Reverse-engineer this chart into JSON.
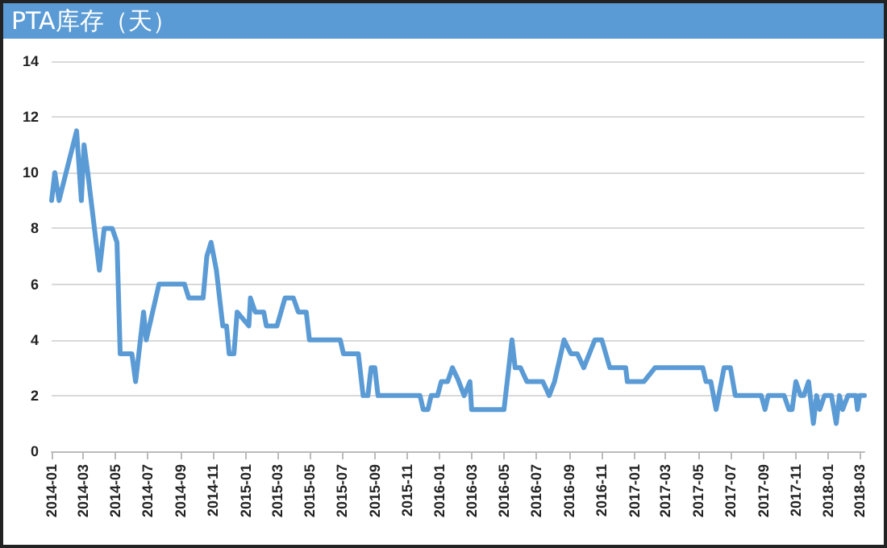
{
  "chart_data": {
    "type": "line",
    "title": "PTA库存（天）",
    "color": "#5b9bd5",
    "line_style": "solid",
    "marker": "none",
    "grid": "y",
    "x": [
      "2014-01-01",
      "2014-01-07",
      "2014-01-15",
      "2014-02-17",
      "2014-02-26",
      "2014-03-03",
      "2014-03-10",
      "2014-04-01",
      "2014-04-10",
      "2014-04-25",
      "2014-05-04",
      "2014-05-10",
      "2014-06-01",
      "2014-06-08",
      "2014-06-23",
      "2014-06-28",
      "2014-07-22",
      "2014-09-08",
      "2014-09-16",
      "2014-10-13",
      "2014-10-20",
      "2014-10-28",
      "2014-11-07",
      "2014-11-19",
      "2014-11-26",
      "2014-12-01",
      "2014-12-10",
      "2014-12-16",
      "2015-01-07",
      "2015-01-10",
      "2015-01-19",
      "2015-02-04",
      "2015-02-09",
      "2015-03-01",
      "2015-03-16",
      "2015-04-01",
      "2015-04-10",
      "2015-04-25",
      "2015-05-01",
      "2015-06-28",
      "2015-07-04",
      "2015-08-01",
      "2015-08-10",
      "2015-08-19",
      "2015-08-25",
      "2015-09-01",
      "2015-09-07",
      "2015-11-25",
      "2015-12-01",
      "2015-12-10",
      "2015-12-16",
      "2015-12-28",
      "2016-01-04",
      "2016-01-16",
      "2016-01-25",
      "2016-02-04",
      "2016-02-16",
      "2016-02-27",
      "2016-03-01",
      "2016-05-01",
      "2016-05-07",
      "2016-05-16",
      "2016-05-22",
      "2016-06-01",
      "2016-06-13",
      "2016-07-13",
      "2016-07-25",
      "2016-08-04",
      "2016-08-22",
      "2016-09-04",
      "2016-09-16",
      "2016-09-28",
      "2016-10-19",
      "2016-11-01",
      "2016-11-16",
      "2016-12-16",
      "2016-12-19",
      "2017-01-19",
      "2017-02-09",
      "2017-05-10",
      "2017-05-16",
      "2017-05-25",
      "2017-06-04",
      "2017-06-19",
      "2017-07-01",
      "2017-07-10",
      "2017-08-28",
      "2017-09-04",
      "2017-09-10",
      "2017-10-10",
      "2017-10-19",
      "2017-10-25",
      "2017-11-01",
      "2017-11-10",
      "2017-11-16",
      "2017-11-25",
      "2017-12-04",
      "2017-12-10",
      "2017-12-16",
      "2017-12-25",
      "2018-01-07",
      "2018-01-16",
      "2018-01-22",
      "2018-01-28",
      "2018-02-07",
      "2018-02-22",
      "2018-02-25",
      "2018-03-01",
      "2018-03-10"
    ],
    "values": [
      9,
      10,
      9,
      11.5,
      9,
      11,
      10,
      6.5,
      8,
      8,
      7.5,
      3.5,
      3.5,
      2.5,
      5,
      4,
      6,
      6,
      5.5,
      5.5,
      7,
      7.5,
      6.5,
      4.5,
      4.5,
      3.5,
      3.5,
      5,
      4.5,
      5.5,
      5,
      5,
      4.5,
      4.5,
      5.5,
      5.5,
      5,
      5,
      4,
      4,
      3.5,
      3.5,
      2,
      2,
      3,
      3,
      2,
      2,
      1.5,
      1.5,
      2,
      2,
      2.5,
      2.5,
      3,
      2.6,
      2,
      2.5,
      1.5,
      1.5,
      2.5,
      4,
      3,
      3,
      2.5,
      2.5,
      2,
      2.5,
      4,
      3.5,
      3.5,
      3,
      4,
      4,
      3,
      3,
      2.5,
      2.5,
      3,
      3,
      2.5,
      2.5,
      1.5,
      3,
      3,
      2,
      2,
      1.5,
      2,
      2,
      1.5,
      1.5,
      2.5,
      2,
      2,
      2.5,
      1,
      2,
      1.5,
      2,
      2,
      1,
      2,
      1.5,
      2,
      2,
      1.5,
      2,
      2
    ],
    "xlim": [
      "2014-01-01",
      "2018-03-10"
    ],
    "xticks": [
      "2014-01",
      "2014-03",
      "2014-05",
      "2014-07",
      "2014-09",
      "2014-11",
      "2015-01",
      "2015-03",
      "2015-05",
      "2015-07",
      "2015-09",
      "2015-11",
      "2016-01",
      "2016-03",
      "2016-05",
      "2016-07",
      "2016-09",
      "2016-11",
      "2017-01",
      "2017-03",
      "2017-05",
      "2017-07",
      "2017-09",
      "2017-11",
      "2018-01",
      "2018-03"
    ],
    "ylim": [
      0,
      14
    ],
    "yticks": [
      0,
      2,
      4,
      6,
      8,
      10,
      12,
      14
    ]
  }
}
